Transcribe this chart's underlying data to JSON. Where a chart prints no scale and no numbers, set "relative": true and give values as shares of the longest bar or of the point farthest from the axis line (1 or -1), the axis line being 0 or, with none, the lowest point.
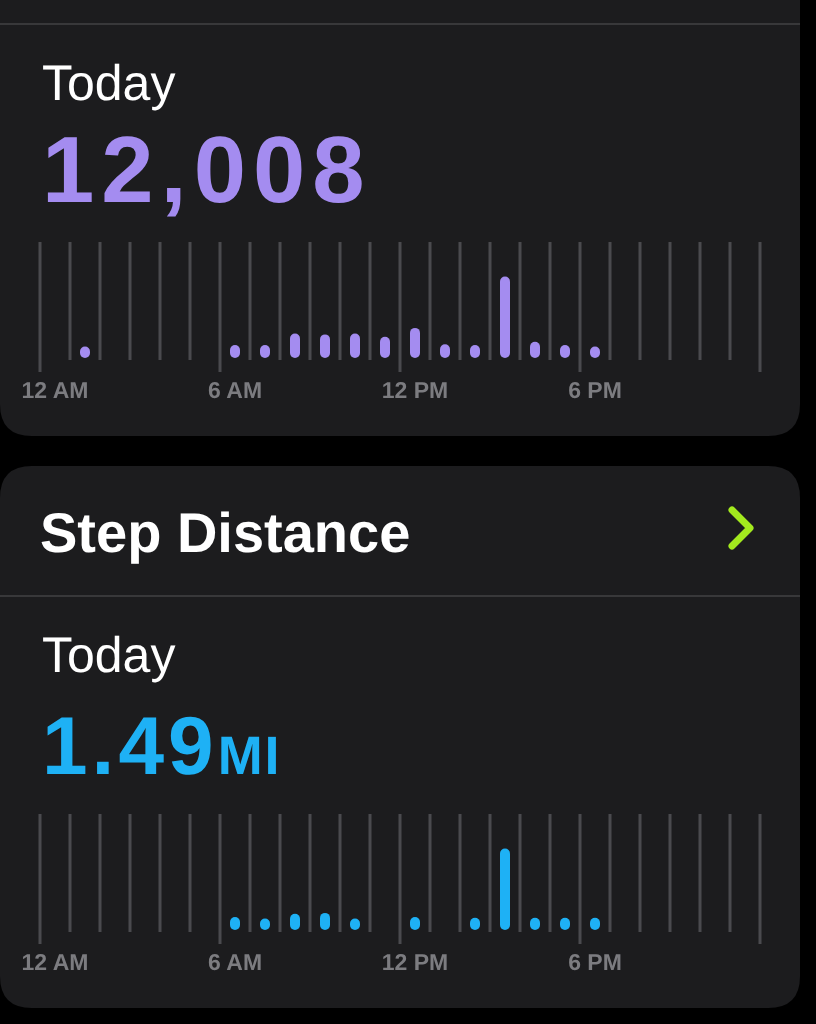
{
  "chart_data": [
    {
      "type": "bar",
      "subtitle": "Today",
      "annotations": [
        "12,008"
      ],
      "categories": [
        "12 AM",
        null,
        null,
        null,
        null,
        null,
        "6 AM",
        null,
        null,
        null,
        null,
        null,
        "12 PM",
        null,
        null,
        null,
        null,
        null,
        "6 PM",
        null,
        null,
        null,
        null,
        null
      ],
      "values": [
        null,
        0.14,
        null,
        null,
        null,
        null,
        0.16,
        0.16,
        0.3,
        0.29,
        0.3,
        0.26,
        0.37,
        0.17,
        0.16,
        1,
        0.2,
        0.16,
        0.14,
        null,
        null,
        null,
        null,
        null
      ],
      "color": "#a48cf0",
      "relative": true,
      "grid": "x"
    },
    {
      "type": "bar",
      "title": "Step Distance",
      "subtitle": "Today",
      "annotations": [
        "1.49MI"
      ],
      "categories": [
        "12 AM",
        null,
        null,
        null,
        null,
        null,
        "6 AM",
        null,
        null,
        null,
        null,
        null,
        "12 PM",
        null,
        null,
        null,
        null,
        null,
        "6 PM",
        null,
        null,
        null,
        null,
        null
      ],
      "values": [
        null,
        null,
        null,
        null,
        null,
        null,
        0.16,
        0.14,
        0.2,
        0.21,
        0.14,
        null,
        0.16,
        null,
        0.15,
        1,
        0.15,
        0.15,
        0.15,
        null,
        null,
        null,
        null,
        null
      ],
      "color": "#1eb1f5",
      "relative": true,
      "grid": "x"
    }
  ]
}
